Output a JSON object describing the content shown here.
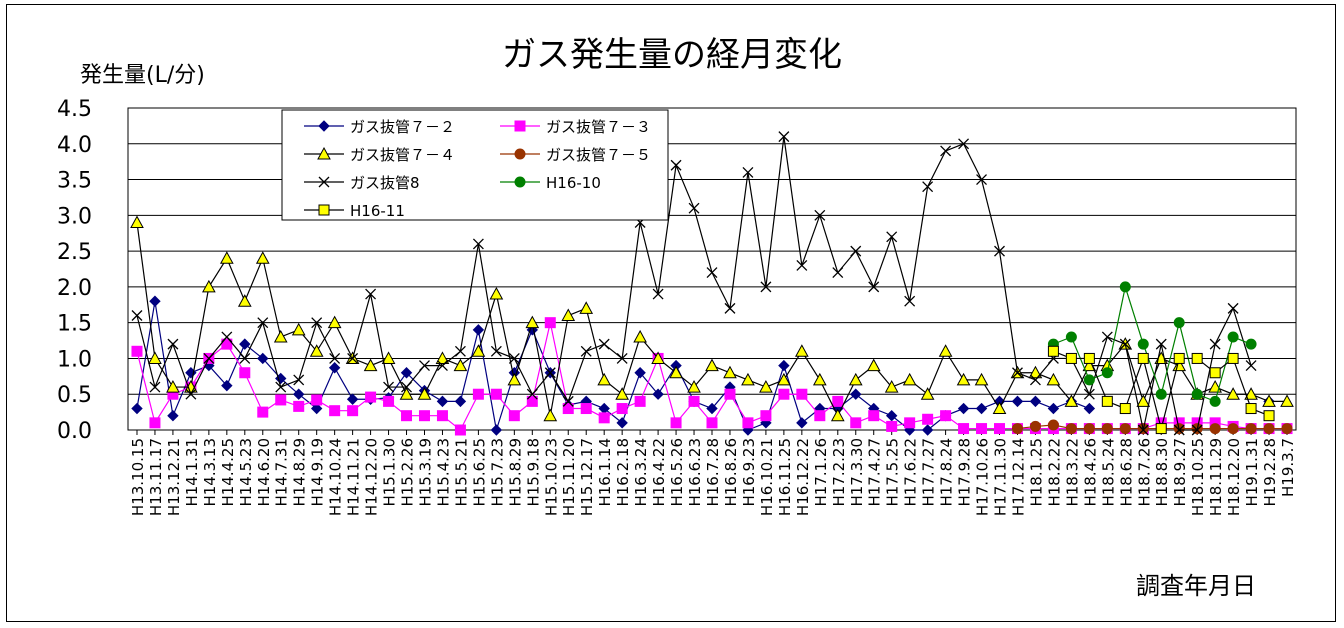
{
  "chart_data": {
    "type": "line",
    "title": "ガス発生量の経月変化",
    "ylabel": "発生量(L/分)",
    "xlabel": "調査年月日",
    "ylim": [
      0,
      4.5
    ],
    "yticks": [
      "0.0",
      "0.5",
      "1.0",
      "1.5",
      "2.0",
      "2.5",
      "3.0",
      "3.5",
      "4.0",
      "4.5"
    ],
    "grid": true,
    "legend_position": "top-left",
    "categories": [
      "H13.10.15",
      "H13.11.17",
      "H13.12.21",
      "H14.1.31",
      "H14.3.13",
      "H14.4.25",
      "H14.5.23",
      "H14.6.20",
      "H14.7.31",
      "H14.8.29",
      "H14.9.19",
      "H14.10.24",
      "H14.11.21",
      "H14.12.20",
      "H15.1.30",
      "H15.2.26",
      "H15.3.19",
      "H15.4.23",
      "H15.5.21",
      "H15.6.25",
      "H15.7.23",
      "H15.8.29",
      "H15.9.18",
      "H15.10.23",
      "H15.11.20",
      "H15.12.17",
      "H16.1.14",
      "H16.2.18",
      "H16.3.24",
      "H16.4.22",
      "H16.5.26",
      "H16.6.23",
      "H16.7.28",
      "H16.8.26",
      "H16.9.23",
      "H16.10.21",
      "H16.11.25",
      "H16.12.22",
      "H17.1.26",
      "H17.2.23",
      "H17.3.30",
      "H17.4.27",
      "H17.5.25",
      "H17.6.22",
      "H17.7.27",
      "H17.8.24",
      "H17.9.28",
      "H17.10.26",
      "H17.11.30",
      "H17.12.14",
      "H18.1.25",
      "H18.2.22",
      "H18.3.22",
      "H18.4.26",
      "H18.5.24",
      "H18.6.28",
      "H18.7.26",
      "H18.8.30",
      "H18.9.27",
      "H18.10.25",
      "H18.11.29",
      "H18.12.20",
      "H19.1.31",
      "H19.2.28",
      "H19.3.7"
    ],
    "series": [
      {
        "name": "ガス抜管７－２",
        "color": "#000080",
        "marker": "diamond",
        "values": [
          0.3,
          1.8,
          0.2,
          0.8,
          0.9,
          0.62,
          1.2,
          1.0,
          0.72,
          0.5,
          0.3,
          0.87,
          0.43,
          0.43,
          0.45,
          0.8,
          0.55,
          0.4,
          0.4,
          1.4,
          0.0,
          0.8,
          1.4,
          0.8,
          0.35,
          0.4,
          0.3,
          0.1,
          0.8,
          0.5,
          0.9,
          0.4,
          0.3,
          0.6,
          0.0,
          0.1,
          0.9,
          0.1,
          0.3,
          0.3,
          0.5,
          0.3,
          0.2,
          0.0,
          0.0,
          0.2,
          0.3,
          0.3,
          0.4,
          0.4,
          0.4,
          0.3,
          0.4,
          0.3,
          null,
          null,
          null,
          null,
          null,
          null,
          null,
          null,
          null,
          0.4,
          null
        ]
      },
      {
        "name": "ガス抜管７－３",
        "color": "#ff00ff",
        "marker": "square",
        "values": [
          1.1,
          0.1,
          0.5,
          0.6,
          1.0,
          1.2,
          0.8,
          0.25,
          0.42,
          0.33,
          0.42,
          0.27,
          0.27,
          0.46,
          0.4,
          0.2,
          0.2,
          0.2,
          0.0,
          0.5,
          0.5,
          0.2,
          0.4,
          1.5,
          0.3,
          0.3,
          0.17,
          0.3,
          0.4,
          1.0,
          0.1,
          0.4,
          0.1,
          0.5,
          0.1,
          0.2,
          0.5,
          0.5,
          0.2,
          0.4,
          0.1,
          0.2,
          0.05,
          0.1,
          0.15,
          0.2,
          0.02,
          0.02,
          0.02,
          0.02,
          0.02,
          0.02,
          0.02,
          0.02,
          0.02,
          0.02,
          0.02,
          0.1,
          0.1,
          0.1,
          0.1,
          0.05,
          0.02,
          0.02,
          0.02
        ]
      },
      {
        "name": "ガス抜管７－４",
        "color": "#000000",
        "marker": "triangle",
        "fill": "#ffff00",
        "values": [
          2.9,
          1.0,
          0.6,
          0.6,
          2.0,
          2.4,
          1.8,
          2.4,
          1.3,
          1.4,
          1.1,
          1.5,
          1.0,
          0.9,
          1.0,
          0.5,
          0.5,
          1.0,
          0.9,
          1.1,
          1.9,
          0.7,
          1.5,
          0.2,
          1.6,
          1.7,
          0.7,
          0.5,
          1.3,
          1.0,
          0.8,
          0.6,
          0.9,
          0.8,
          0.7,
          0.6,
          0.7,
          1.1,
          0.7,
          0.2,
          0.7,
          0.9,
          0.6,
          0.7,
          0.5,
          1.1,
          0.7,
          0.7,
          0.3,
          0.8,
          0.8,
          0.7,
          0.4,
          0.9,
          0.9,
          1.2,
          0.4,
          1.0,
          0.9,
          0.5,
          0.6,
          0.5,
          0.5,
          0.4,
          0.4
        ]
      },
      {
        "name": "ガス抜管７－５",
        "color": "#993300",
        "marker": "circle",
        "values": [
          null,
          null,
          null,
          null,
          null,
          null,
          null,
          null,
          null,
          null,
          null,
          null,
          null,
          null,
          null,
          null,
          null,
          null,
          null,
          null,
          null,
          null,
          null,
          null,
          null,
          null,
          null,
          null,
          null,
          null,
          null,
          null,
          null,
          null,
          null,
          null,
          null,
          null,
          null,
          null,
          null,
          null,
          null,
          null,
          null,
          null,
          null,
          null,
          null,
          0.02,
          0.05,
          0.07,
          0.02,
          0.02,
          0.02,
          0.02,
          0.02,
          0.02,
          0.02,
          0.02,
          0.02,
          0.02,
          0.02,
          0.02,
          0.02
        ]
      },
      {
        "name": "ガス抜管8",
        "color": "#000000",
        "marker": "x",
        "values": [
          1.6,
          0.6,
          1.2,
          0.5,
          1.0,
          1.3,
          1.0,
          1.5,
          0.6,
          0.7,
          1.5,
          1.0,
          1.0,
          1.9,
          0.6,
          0.6,
          0.9,
          0.9,
          1.1,
          2.6,
          1.1,
          1.0,
          0.5,
          0.8,
          0.4,
          1.1,
          1.2,
          1.0,
          2.9,
          1.9,
          3.7,
          3.1,
          2.2,
          1.7,
          3.6,
          2.0,
          4.1,
          2.3,
          3.0,
          2.2,
          2.5,
          2.0,
          2.7,
          1.8,
          3.4,
          3.9,
          4.0,
          3.5,
          2.5,
          0.8,
          0.7,
          1.0,
          1.0,
          0.5,
          1.3,
          1.2,
          0.0,
          1.2,
          0.0,
          0.0,
          1.2,
          1.7,
          0.9,
          null,
          null
        ]
      },
      {
        "name": "H16-10",
        "color": "#008000",
        "marker": "circle",
        "values": [
          null,
          null,
          null,
          null,
          null,
          null,
          null,
          null,
          null,
          null,
          null,
          null,
          null,
          null,
          null,
          null,
          null,
          null,
          null,
          null,
          null,
          null,
          null,
          null,
          null,
          null,
          null,
          null,
          null,
          null,
          null,
          null,
          null,
          null,
          null,
          null,
          null,
          null,
          null,
          null,
          null,
          null,
          null,
          null,
          null,
          null,
          null,
          null,
          null,
          null,
          null,
          1.2,
          1.3,
          0.7,
          0.8,
          2.0,
          1.2,
          0.5,
          1.5,
          0.5,
          0.4,
          1.3,
          1.2,
          null,
          null
        ]
      },
      {
        "name": "H16-11",
        "color": "#000000",
        "marker": "square",
        "fill": "#ffff00",
        "values": [
          null,
          null,
          null,
          null,
          null,
          null,
          null,
          null,
          null,
          null,
          null,
          null,
          null,
          null,
          null,
          null,
          null,
          null,
          null,
          null,
          null,
          null,
          null,
          null,
          null,
          null,
          null,
          null,
          null,
          null,
          null,
          null,
          null,
          null,
          null,
          null,
          null,
          null,
          null,
          null,
          null,
          null,
          null,
          null,
          null,
          null,
          null,
          null,
          null,
          null,
          null,
          1.1,
          1.0,
          1.0,
          0.4,
          0.3,
          1.0,
          0.02,
          1.0,
          1.0,
          0.8,
          1.0,
          0.3,
          0.2,
          null
        ]
      }
    ]
  }
}
